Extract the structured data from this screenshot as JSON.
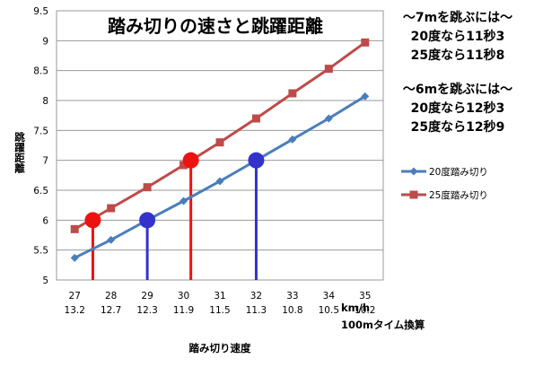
{
  "chart_data": {
    "type": "line",
    "title": "踏み切りの速さと跳躍距離",
    "xlabel": "踏み切り速度",
    "ylabel": "跳躍距離",
    "x_unit_label": "km/h",
    "x2_unit_label": "100mタイム換算",
    "categories": [
      "27",
      "28",
      "29",
      "30",
      "31",
      "32",
      "33",
      "34",
      "35"
    ],
    "categories_secondary": [
      "13.2",
      "12.7",
      "12.3",
      "11.9",
      "11.5",
      "11.3",
      "10.8",
      "10.5",
      "10.2"
    ],
    "yticks": [
      "5",
      "5.5",
      "6",
      "6.5",
      "7",
      "7.5",
      "8",
      "8.5",
      "9",
      "9.5"
    ],
    "ylim": [
      5,
      9.5
    ],
    "grid": true,
    "legend_position": "right",
    "series": [
      {
        "name": "20度踏み切り",
        "color": "#4a7ebb",
        "marker": "diamond",
        "values": [
          5.37,
          5.67,
          6.0,
          6.32,
          6.65,
          7.0,
          7.35,
          7.7,
          8.07
        ]
      },
      {
        "name": "25度踏み切り",
        "color": "#be4b48",
        "marker": "square",
        "values": [
          5.85,
          6.2,
          6.55,
          6.92,
          7.3,
          7.7,
          8.12,
          8.53,
          8.97
        ]
      }
    ],
    "highlights": [
      {
        "series": 1,
        "x": 27.5,
        "y": 6.0,
        "color": "#ee1111"
      },
      {
        "series": 0,
        "x": 29,
        "y": 6.0,
        "color": "#3333cc"
      },
      {
        "series": 1,
        "x": 30.2,
        "y": 7.0,
        "color": "#ee1111"
      },
      {
        "series": 0,
        "x": 32,
        "y": 7.0,
        "color": "#3333cc"
      }
    ],
    "annotations": [
      "～7mを跳ぶには～",
      "20度なら11秒3",
      "25度なら11秒8",
      "～6mを跳ぶには～",
      "20度なら12秒3",
      "25度なら12秒9"
    ]
  }
}
